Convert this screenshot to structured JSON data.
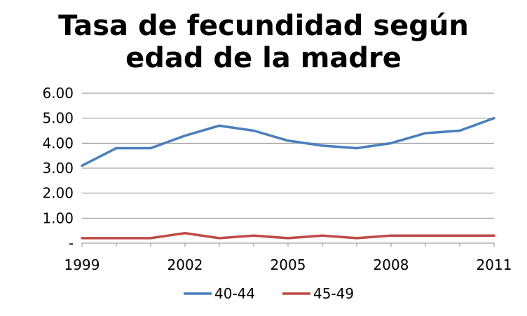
{
  "chart_data": {
    "type": "line",
    "title_lines": [
      "Tasa de fecundidad según",
      "edad de la madre"
    ],
    "x": [
      1999,
      2000,
      2001,
      2002,
      2003,
      2004,
      2005,
      2006,
      2007,
      2008,
      2009,
      2010,
      2011
    ],
    "x_tick_labels": [
      "1999",
      "2002",
      "2005",
      "2008",
      "2011"
    ],
    "y_tick_labels": [
      "-",
      "1.00",
      "2.00",
      "3.00",
      "4.00",
      "5.00",
      "6.00"
    ],
    "ylim": [
      0,
      6
    ],
    "y_ticks": [
      0,
      1,
      2,
      3,
      4,
      5,
      6
    ],
    "grid": "horizontal",
    "legend": "bottom",
    "series": [
      {
        "name": "40-44",
        "color": "#4a7ebb",
        "values": [
          3.1,
          3.8,
          3.8,
          4.3,
          4.7,
          4.5,
          4.1,
          3.9,
          3.8,
          4.0,
          4.4,
          4.5,
          5.0
        ]
      },
      {
        "name": "45-49",
        "color": "#be4b48",
        "values": [
          0.2,
          0.2,
          0.2,
          0.4,
          0.2,
          0.3,
          0.2,
          0.3,
          0.2,
          0.3,
          0.3,
          0.3,
          0.3
        ]
      }
    ]
  }
}
